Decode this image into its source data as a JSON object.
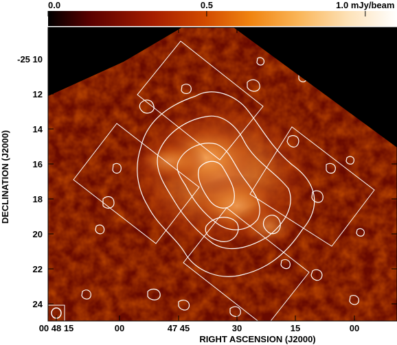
{
  "colorbar": {
    "tick_labels": [
      "0.0",
      "0.5",
      "1.0 mJy/beam"
    ],
    "tick_values": [
      0.0,
      0.5,
      1.0
    ],
    "range": [
      0.0,
      1.1
    ],
    "colormap": [
      "#000000",
      "#5a0000",
      "#a51d00",
      "#d24a00",
      "#f08410",
      "#fab65a",
      "#fde2b8",
      "#ffffff"
    ]
  },
  "axes": {
    "x_title": "RIGHT ASCENSION (J2000)",
    "y_title": "DECLINATION (J2000)",
    "x_tick_labels": [
      "00 48 15",
      "00",
      "47 45",
      "30",
      "15",
      "00"
    ],
    "y_tick_labels": [
      "-25 10",
      "12",
      "14",
      "16",
      "18",
      "20",
      "22",
      "24"
    ]
  },
  "colors": {
    "contour": "#ffffff",
    "background": "#000000",
    "frame": "#000000"
  }
}
